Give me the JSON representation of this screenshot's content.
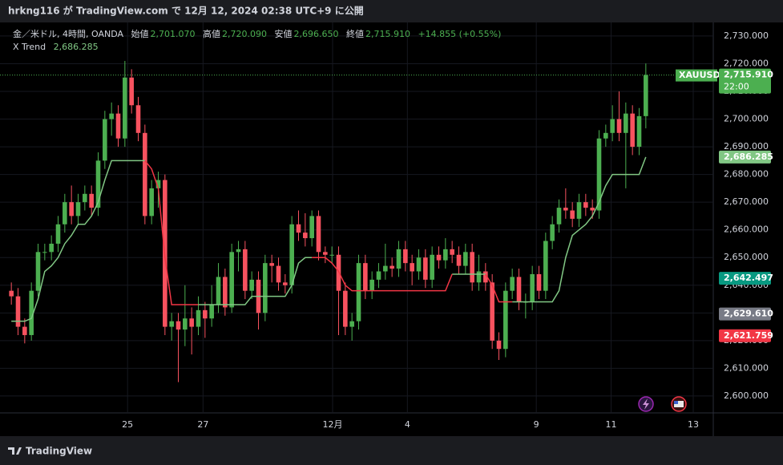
{
  "header": "hrkng116 が TradingView.com で 12月 12, 2024 02:38 UTC+9 に公開",
  "legend": {
    "symbol": "金／米ドル, 4時間, OANDA",
    "open_label": "始値",
    "open": "2,701.070",
    "high_label": "高値",
    "high": "2,720.090",
    "low_label": "安値",
    "low": "2,696.650",
    "close_label": "終値",
    "close": "2,715.910",
    "change": "+14.855 (+0.55%)",
    "indicator": "X Trend",
    "indicator_value": "2,686.285"
  },
  "footer": "TradingView",
  "chart_data": {
    "type": "candlestick",
    "up_color": "#4caf50",
    "down_color": "#f7525f",
    "open": [
      2638,
      2636,
      2625,
      2622,
      2638,
      2652,
      2652,
      2655,
      2662,
      2670,
      2665,
      2670,
      2673,
      2668,
      2685,
      2700,
      2702,
      2693,
      2715,
      2705,
      2695,
      2665,
      2675,
      2678,
      2625,
      2627,
      2624,
      2628,
      2625,
      2631,
      2628,
      2633,
      2643,
      2632,
      2652,
      2653,
      2638,
      2642,
      2630,
      2648,
      2647,
      2641,
      2640,
      2662,
      2659,
      2657,
      2665,
      2652,
      2651,
      2651,
      2638,
      2625,
      2627,
      2648,
      2638,
      2642,
      2645,
      2647,
      2646,
      2653,
      2648,
      2645,
      2650,
      2642,
      2651,
      2649,
      2653,
      2651,
      2647,
      2652,
      2641,
      2645,
      2641,
      2620,
      2617,
      2638,
      2643,
      2634,
      2634,
      2644,
      2638,
      2656,
      2662,
      2668,
      2667,
      2664,
      2670,
      2668,
      2667,
      2693,
      2695,
      2700,
      2695,
      2702,
      2690,
      2701.07
    ],
    "high": [
      2641,
      2639,
      2628,
      2641,
      2655,
      2655,
      2658,
      2665,
      2673,
      2676,
      2673,
      2676,
      2676,
      2688,
      2703,
      2706,
      2705,
      2721,
      2718,
      2708,
      2698,
      2678,
      2681,
      2680,
      2630,
      2630,
      2640,
      2632,
      2636,
      2634,
      2640,
      2648,
      2646,
      2655,
      2656,
      2656,
      2645,
      2645,
      2651,
      2651,
      2650,
      2644,
      2665,
      2667,
      2666,
      2667,
      2667,
      2654,
      2654,
      2654,
      2641,
      2630,
      2651,
      2651,
      2645,
      2648,
      2655,
      2650,
      2656,
      2656,
      2651,
      2653,
      2653,
      2654,
      2654,
      2657,
      2656,
      2654,
      2655,
      2655,
      2651,
      2648,
      2644,
      2623,
      2641,
      2646,
      2646,
      2637,
      2647,
      2647,
      2659,
      2665,
      2671,
      2675,
      2670,
      2673,
      2673,
      2671,
      2696,
      2698,
      2705,
      2710,
      2706,
      2705,
      2704,
      2720.09
    ],
    "low": [
      2633,
      2622,
      2619,
      2620,
      2636,
      2649,
      2649,
      2652,
      2659,
      2662,
      2662,
      2667,
      2665,
      2665,
      2682,
      2694,
      2690,
      2690,
      2702,
      2692,
      2662,
      2662,
      2668,
      2622,
      2620,
      2605,
      2618,
      2615,
      2622,
      2621,
      2625,
      2630,
      2629,
      2630,
      2645,
      2635,
      2635,
      2624,
      2627,
      2641,
      2638,
      2637,
      2637,
      2656,
      2654,
      2654,
      2649,
      2648,
      2648,
      2622,
      2622,
      2620,
      2624,
      2635,
      2635,
      2639,
      2642,
      2643,
      2643,
      2645,
      2640,
      2642,
      2639,
      2639,
      2646,
      2646,
      2648,
      2644,
      2644,
      2638,
      2638,
      2638,
      2617,
      2613,
      2614,
      2635,
      2631,
      2628,
      2631,
      2635,
      2635,
      2653,
      2659,
      2664,
      2661,
      2661,
      2665,
      2664,
      2664,
      2690,
      2692,
      2692,
      2675,
      2687,
      2687,
      2696.65
    ],
    "close": [
      2636,
      2625,
      2622,
      2638,
      2652,
      2652,
      2655,
      2662,
      2670,
      2665,
      2670,
      2673,
      2668,
      2685,
      2700,
      2702,
      2693,
      2715,
      2705,
      2695,
      2665,
      2675,
      2678,
      2625,
      2627,
      2624,
      2628,
      2625,
      2631,
      2628,
      2633,
      2643,
      2632,
      2652,
      2653,
      2638,
      2642,
      2630,
      2648,
      2647,
      2641,
      2640,
      2662,
      2659,
      2657,
      2665,
      2652,
      2651,
      2651,
      2638,
      2625,
      2627,
      2648,
      2638,
      2642,
      2645,
      2647,
      2646,
      2653,
      2648,
      2645,
      2650,
      2642,
      2651,
      2649,
      2653,
      2651,
      2647,
      2652,
      2641,
      2645,
      2641,
      2620,
      2617,
      2638,
      2643,
      2634,
      2634,
      2644,
      2638,
      2656,
      2662,
      2668,
      2667,
      2664,
      2670,
      2668,
      2667,
      2693,
      2695,
      2700,
      2695,
      2702,
      2690,
      2701.07,
      2715.91
    ],
    "trend": {
      "name": "X Trend",
      "color": "#81c784",
      "down_color": "#f23645",
      "values": [
        2627,
        2627,
        2627,
        2628,
        2635,
        2645,
        2647,
        2650,
        2655,
        2658,
        2662,
        2662,
        2665,
        2670,
        2678,
        2685,
        2685,
        2685,
        2685,
        2685,
        2685,
        null,
        null,
        null,
        null,
        null,
        null,
        null,
        2633,
        2633,
        2633,
        2633,
        2633,
        2633,
        2633,
        2633,
        2636,
        2636,
        2636,
        2636,
        2636,
        2636,
        2640,
        2648,
        2650,
        2650,
        null,
        null,
        null,
        null,
        null,
        null,
        null,
        null,
        null,
        null,
        null,
        null,
        null,
        null,
        null,
        null,
        null,
        null,
        null,
        null,
        2644,
        2644,
        2644,
        2644,
        2644,
        2644,
        null,
        null,
        null,
        2634,
        2634,
        2634,
        2634,
        2634,
        2634,
        2634,
        2638,
        2650,
        2658,
        2660,
        2662,
        2665,
        2670,
        2676,
        2680,
        2680,
        2680,
        2680,
        2680,
        2686.285
      ],
      "down_values": [
        null,
        null,
        null,
        null,
        null,
        null,
        null,
        null,
        null,
        null,
        null,
        null,
        null,
        null,
        null,
        null,
        null,
        null,
        null,
        null,
        2685,
        2682,
        2675,
        2650,
        2633,
        2633,
        2633,
        2633,
        2633,
        null,
        null,
        null,
        null,
        null,
        null,
        null,
        null,
        null,
        null,
        null,
        null,
        null,
        null,
        null,
        null,
        2650,
        2650,
        2650,
        2648,
        2645,
        2640,
        2638,
        2638,
        2638,
        2638,
        2638,
        2638,
        2638,
        2638,
        2638,
        2638,
        2638,
        2638,
        2638,
        2638,
        2638,
        2644,
        null,
        null,
        null,
        null,
        2644,
        2640,
        2634,
        2634,
        2634,
        null,
        null,
        null,
        null,
        null,
        null,
        null,
        null,
        null,
        null,
        null,
        null,
        null,
        null,
        null,
        null,
        null,
        null,
        null,
        null
      ]
    },
    "xlim": [
      -1.7,
      105.1
    ],
    "xticks": [
      {
        "value": 17.4,
        "label": "25"
      },
      {
        "value": 28.7,
        "label": "27"
      },
      {
        "value": 48.1,
        "label": "12月"
      },
      {
        "value": 59.3,
        "label": "4"
      },
      {
        "value": 78.6,
        "label": "9"
      },
      {
        "value": 89.8,
        "label": "11"
      },
      {
        "value": 102.1,
        "label": "13"
      }
    ],
    "ylim": [
      2593.9,
      2734.9
    ],
    "yticks": [
      {
        "value": 2600,
        "label": "2,600.000"
      },
      {
        "value": 2610,
        "label": "2,610.000"
      },
      {
        "value": 2620,
        "label": "2,620.000"
      },
      {
        "value": 2630,
        "label": "2,630.000"
      },
      {
        "value": 2640,
        "label": "2,640.000"
      },
      {
        "value": 2650,
        "label": "2,650.000"
      },
      {
        "value": 2660,
        "label": "2,660.000"
      },
      {
        "value": 2670,
        "label": "2,670.000"
      },
      {
        "value": 2680,
        "label": "2,680.000"
      },
      {
        "value": 2690,
        "label": "2,690.000"
      },
      {
        "value": 2700,
        "label": "2,700.000"
      },
      {
        "value": 2710,
        "label": "2,710.000"
      },
      {
        "value": 2720,
        "label": "2,720.000"
      },
      {
        "value": 2730,
        "label": "2,730.000"
      }
    ],
    "grid": true,
    "symbol_tag": "XAUUSD",
    "price_tags": [
      {
        "value": 2715.91,
        "label": "2,715.910",
        "time": "22:00",
        "color": "#4caf50"
      },
      {
        "value": 2686.285,
        "label": "2,686.285",
        "color": "#81c784"
      },
      {
        "value": 2642.497,
        "label": "2,642.497",
        "color": "#089981"
      },
      {
        "value": 2629.61,
        "label": "2,629.610",
        "color": "#787b86"
      },
      {
        "value": 2621.759,
        "label": "2,621.759",
        "color": "#f23645"
      }
    ]
  }
}
